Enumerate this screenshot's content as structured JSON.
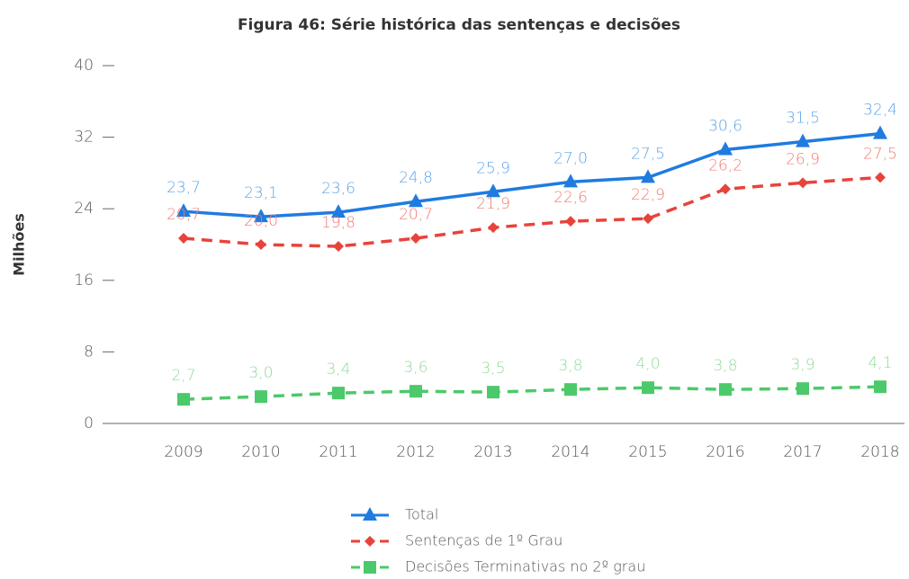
{
  "chart_data": {
    "type": "line",
    "title": "Figura 46: Série histórica das sentenças e decisões",
    "y_label": "Milhões",
    "categories": [
      "2009",
      "2010",
      "2011",
      "2012",
      "2013",
      "2014",
      "2015",
      "2016",
      "2017",
      "2018"
    ],
    "ylim": [
      0,
      40
    ],
    "yticks": [
      0,
      8,
      16,
      24,
      32,
      40
    ],
    "grid": false,
    "legend": "bottom",
    "series": [
      {
        "name": "Total",
        "color": "#1f7be0",
        "label_color": "#5ba3e8",
        "marker": "triangle",
        "dash": false,
        "values": [
          23.7,
          23.1,
          23.6,
          24.8,
          25.9,
          27.0,
          27.5,
          30.6,
          31.5,
          32.4
        ],
        "value_labels": [
          "23,7",
          "23,1",
          "23,6",
          "24,8",
          "25,9",
          "27,0",
          "27,5",
          "30,6",
          "31,5",
          "32,4"
        ]
      },
      {
        "name": "Sentenças de 1º Grau",
        "color": "#e8433b",
        "label_color": "#f07a70",
        "marker": "diamond",
        "dash": true,
        "values": [
          20.7,
          20.0,
          19.8,
          20.7,
          21.9,
          22.6,
          22.9,
          26.2,
          26.9,
          27.5
        ],
        "value_labels": [
          "20,7",
          "20,0",
          "19,8",
          "20,7",
          "21,9",
          "22,6",
          "22,9",
          "26,2",
          "26,9",
          "27,5"
        ]
      },
      {
        "name": "Decisões Terminativas no 2º grau",
        "color": "#4cc96a",
        "label_color": "#8fdc98",
        "marker": "square",
        "dash": true,
        "values": [
          2.7,
          3.0,
          3.4,
          3.6,
          3.5,
          3.8,
          4.0,
          3.8,
          3.9,
          4.1
        ],
        "value_labels": [
          "2,7",
          "3,0",
          "3,4",
          "3,6",
          "3,5",
          "3,8",
          "4,0",
          "3,8",
          "3,9",
          "4,1"
        ]
      }
    ]
  }
}
